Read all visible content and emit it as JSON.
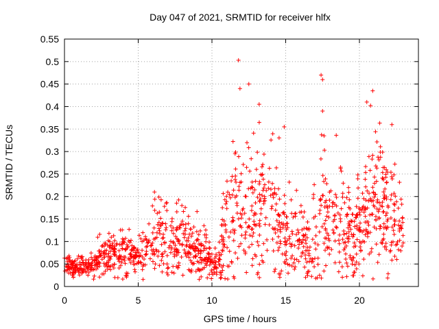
{
  "chart_data": {
    "type": "scatter",
    "title": "Day 047 of 2021, SRMTID for receiver hlfx",
    "xlabel": "GPS time / hours",
    "ylabel": "SRMTID / TECUs",
    "xlim": [
      0,
      24
    ],
    "ylim": [
      0,
      0.55
    ],
    "x_ticks": [
      "0",
      "5",
      "10",
      "15",
      "20"
    ],
    "y_ticks": [
      "0",
      "0.05",
      "0.1",
      "0.15",
      "0.2",
      "0.25",
      "0.3",
      "0.35",
      "0.4",
      "0.45",
      "0.5",
      "0.55"
    ],
    "grid": true,
    "marker": "+",
    "color": "#ff0000",
    "envelope_hours": [
      0,
      0.5,
      1,
      1.5,
      2,
      2.5,
      3,
      3.5,
      4,
      4.5,
      5,
      5.5,
      6,
      6.5,
      7,
      7.5,
      8,
      8.5,
      9,
      9.5,
      10,
      10.5,
      11,
      11.5,
      12,
      12.5,
      13,
      13.5,
      14,
      14.5,
      15,
      15.5,
      16,
      16.5,
      17,
      17.5,
      18,
      18.5,
      19,
      19.5,
      20,
      20.5,
      21,
      21.5,
      22,
      22.5,
      23
    ],
    "envelope_median": [
      0.05,
      0.045,
      0.04,
      0.045,
      0.05,
      0.06,
      0.065,
      0.07,
      0.075,
      0.07,
      0.065,
      0.08,
      0.1,
      0.11,
      0.09,
      0.09,
      0.1,
      0.09,
      0.08,
      0.07,
      0.04,
      0.06,
      0.13,
      0.16,
      0.18,
      0.17,
      0.15,
      0.16,
      0.15,
      0.14,
      0.12,
      0.11,
      0.1,
      0.09,
      0.11,
      0.13,
      0.13,
      0.15,
      0.12,
      0.11,
      0.13,
      0.15,
      0.2,
      0.18,
      0.15,
      0.12,
      0.12
    ],
    "envelope_spread": [
      0.02,
      0.015,
      0.015,
      0.02,
      0.025,
      0.03,
      0.035,
      0.04,
      0.04,
      0.035,
      0.03,
      0.05,
      0.07,
      0.07,
      0.06,
      0.05,
      0.06,
      0.05,
      0.05,
      0.04,
      0.02,
      0.04,
      0.09,
      0.12,
      0.13,
      0.12,
      0.1,
      0.11,
      0.1,
      0.09,
      0.07,
      0.06,
      0.06,
      0.05,
      0.08,
      0.1,
      0.08,
      0.09,
      0.07,
      0.06,
      0.08,
      0.1,
      0.12,
      0.11,
      0.09,
      0.07,
      0.06
    ],
    "notable_points": [
      {
        "x": 11.8,
        "y": 0.503
      },
      {
        "x": 11.9,
        "y": 0.44
      },
      {
        "x": 12.5,
        "y": 0.45
      },
      {
        "x": 13.2,
        "y": 0.405
      },
      {
        "x": 14.9,
        "y": 0.355
      },
      {
        "x": 17.4,
        "y": 0.47
      },
      {
        "x": 17.5,
        "y": 0.46
      },
      {
        "x": 17.5,
        "y": 0.39
      },
      {
        "x": 17.6,
        "y": 0.335
      },
      {
        "x": 20.5,
        "y": 0.41
      },
      {
        "x": 20.9,
        "y": 0.435
      },
      {
        "x": 22.2,
        "y": 0.36
      }
    ]
  }
}
